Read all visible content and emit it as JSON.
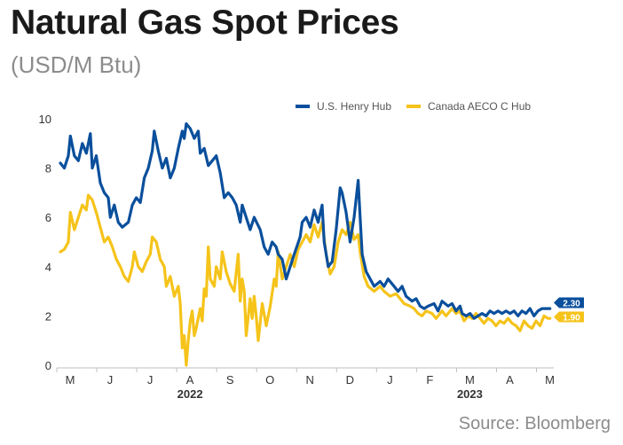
{
  "title": "Natural Gas Spot Prices",
  "subtitle": "(USD/M Btu)",
  "source": "Source: Bloomberg",
  "colors": {
    "henry": "#0a4f9c",
    "aeco": "#f5c31a",
    "axis": "#bfbfbf"
  },
  "chart_data": {
    "type": "line",
    "x_labels": [
      "M",
      "J",
      "J",
      "A",
      "S",
      "O",
      "N",
      "D",
      "J",
      "F",
      "M",
      "A",
      "M"
    ],
    "year_labels": [
      {
        "label": "2022",
        "month_index": 3
      },
      {
        "label": "2023",
        "month_index": 10
      }
    ],
    "ylim": [
      0,
      10
    ],
    "yticks": [
      0,
      2,
      4,
      6,
      8,
      10
    ],
    "x_range": [
      0,
      12.3
    ],
    "legend_position": "top-right",
    "series": [
      {
        "name": "U.S. Henry Hub",
        "color": "#0a4f9c",
        "end_label": "2.30",
        "points": [
          [
            0.0,
            8.2
          ],
          [
            0.1,
            8.0
          ],
          [
            0.2,
            8.5
          ],
          [
            0.25,
            9.3
          ],
          [
            0.35,
            8.5
          ],
          [
            0.45,
            8.3
          ],
          [
            0.55,
            9.0
          ],
          [
            0.65,
            8.6
          ],
          [
            0.75,
            9.4
          ],
          [
            0.8,
            8.0
          ],
          [
            0.9,
            8.5
          ],
          [
            1.0,
            7.4
          ],
          [
            1.1,
            7.0
          ],
          [
            1.2,
            6.8
          ],
          [
            1.25,
            6.0
          ],
          [
            1.35,
            6.5
          ],
          [
            1.45,
            5.8
          ],
          [
            1.55,
            5.6
          ],
          [
            1.7,
            5.8
          ],
          [
            1.8,
            6.5
          ],
          [
            1.9,
            6.8
          ],
          [
            2.0,
            6.6
          ],
          [
            2.1,
            7.6
          ],
          [
            2.2,
            8.0
          ],
          [
            2.3,
            8.7
          ],
          [
            2.35,
            9.5
          ],
          [
            2.45,
            8.7
          ],
          [
            2.55,
            8.0
          ],
          [
            2.65,
            8.4
          ],
          [
            2.75,
            7.6
          ],
          [
            2.85,
            8.0
          ],
          [
            2.95,
            8.8
          ],
          [
            3.05,
            9.5
          ],
          [
            3.1,
            9.2
          ],
          [
            3.15,
            9.8
          ],
          [
            3.25,
            9.6
          ],
          [
            3.35,
            9.2
          ],
          [
            3.45,
            9.5
          ],
          [
            3.5,
            8.6
          ],
          [
            3.6,
            8.8
          ],
          [
            3.7,
            8.1
          ],
          [
            3.8,
            8.3
          ],
          [
            3.9,
            8.5
          ],
          [
            4.0,
            7.8
          ],
          [
            4.1,
            6.8
          ],
          [
            4.2,
            7.0
          ],
          [
            4.3,
            6.8
          ],
          [
            4.4,
            6.5
          ],
          [
            4.5,
            5.8
          ],
          [
            4.55,
            6.5
          ],
          [
            4.65,
            6.0
          ],
          [
            4.75,
            5.5
          ],
          [
            4.85,
            6.0
          ],
          [
            5.0,
            5.5
          ],
          [
            5.1,
            4.8
          ],
          [
            5.2,
            4.5
          ],
          [
            5.3,
            5.0
          ],
          [
            5.4,
            4.8
          ],
          [
            5.45,
            4.5
          ],
          [
            5.55,
            4.3
          ],
          [
            5.65,
            3.5
          ],
          [
            5.75,
            4.0
          ],
          [
            5.85,
            4.5
          ],
          [
            6.0,
            5.2
          ],
          [
            6.05,
            5.8
          ],
          [
            6.15,
            6.0
          ],
          [
            6.25,
            5.6
          ],
          [
            6.35,
            6.3
          ],
          [
            6.45,
            5.8
          ],
          [
            6.55,
            6.5
          ],
          [
            6.6,
            5.0
          ],
          [
            6.7,
            4.0
          ],
          [
            6.8,
            4.2
          ],
          [
            6.9,
            5.5
          ],
          [
            7.0,
            7.2
          ],
          [
            7.05,
            7.0
          ],
          [
            7.15,
            6.2
          ],
          [
            7.25,
            5.0
          ],
          [
            7.35,
            6.0
          ],
          [
            7.45,
            7.5
          ],
          [
            7.5,
            6.0
          ],
          [
            7.55,
            4.5
          ],
          [
            7.65,
            3.8
          ],
          [
            7.75,
            3.5
          ],
          [
            7.85,
            3.2
          ],
          [
            8.0,
            3.4
          ],
          [
            8.1,
            3.2
          ],
          [
            8.2,
            3.5
          ],
          [
            8.3,
            3.3
          ],
          [
            8.45,
            3.0
          ],
          [
            8.55,
            3.2
          ],
          [
            8.65,
            2.8
          ],
          [
            8.8,
            2.6
          ],
          [
            8.9,
            2.7
          ],
          [
            9.0,
            2.4
          ],
          [
            9.1,
            2.3
          ],
          [
            9.2,
            2.4
          ],
          [
            9.35,
            2.5
          ],
          [
            9.45,
            2.2
          ],
          [
            9.55,
            2.6
          ],
          [
            9.7,
            2.4
          ],
          [
            9.8,
            2.5
          ],
          [
            9.9,
            2.2
          ],
          [
            10.0,
            2.4
          ],
          [
            10.05,
            2.1
          ],
          [
            10.15,
            2.0
          ],
          [
            10.25,
            2.1
          ],
          [
            10.35,
            1.9
          ],
          [
            10.45,
            2.0
          ],
          [
            10.55,
            2.1
          ],
          [
            10.65,
            2.0
          ],
          [
            10.75,
            2.2
          ],
          [
            10.85,
            2.1
          ],
          [
            10.95,
            2.2
          ],
          [
            11.05,
            2.1
          ],
          [
            11.15,
            2.2
          ],
          [
            11.25,
            2.1
          ],
          [
            11.35,
            2.2
          ],
          [
            11.45,
            2.0
          ],
          [
            11.55,
            2.2
          ],
          [
            11.65,
            2.1
          ],
          [
            11.75,
            2.3
          ],
          [
            11.85,
            2.0
          ],
          [
            11.95,
            2.2
          ],
          [
            12.05,
            2.3
          ],
          [
            12.15,
            2.3
          ],
          [
            12.25,
            2.3
          ]
        ]
      },
      {
        "name": "Canada AECO C Hub",
        "color": "#f5c31a",
        "end_label": "1.90",
        "points": [
          [
            0.0,
            4.6
          ],
          [
            0.1,
            4.7
          ],
          [
            0.2,
            5.0
          ],
          [
            0.25,
            6.2
          ],
          [
            0.35,
            5.5
          ],
          [
            0.45,
            6.0
          ],
          [
            0.55,
            6.5
          ],
          [
            0.65,
            6.3
          ],
          [
            0.7,
            6.9
          ],
          [
            0.8,
            6.7
          ],
          [
            0.9,
            6.2
          ],
          [
            1.0,
            5.6
          ],
          [
            1.1,
            5.0
          ],
          [
            1.2,
            5.2
          ],
          [
            1.3,
            4.8
          ],
          [
            1.4,
            4.3
          ],
          [
            1.5,
            4.0
          ],
          [
            1.6,
            3.6
          ],
          [
            1.7,
            3.4
          ],
          [
            1.8,
            4.0
          ],
          [
            1.85,
            4.6
          ],
          [
            1.95,
            4.0
          ],
          [
            2.05,
            3.8
          ],
          [
            2.15,
            4.2
          ],
          [
            2.25,
            4.5
          ],
          [
            2.3,
            5.2
          ],
          [
            2.4,
            5.0
          ],
          [
            2.5,
            4.3
          ],
          [
            2.6,
            4.0
          ],
          [
            2.65,
            3.2
          ],
          [
            2.75,
            3.6
          ],
          [
            2.85,
            2.8
          ],
          [
            2.95,
            3.2
          ],
          [
            3.0,
            2.5
          ],
          [
            3.05,
            0.7
          ],
          [
            3.1,
            1.2
          ],
          [
            3.15,
            0.0
          ],
          [
            3.2,
            1.0
          ],
          [
            3.25,
            1.8
          ],
          [
            3.3,
            2.2
          ],
          [
            3.35,
            1.2
          ],
          [
            3.4,
            1.5
          ],
          [
            3.5,
            2.3
          ],
          [
            3.55,
            1.8
          ],
          [
            3.6,
            3.1
          ],
          [
            3.65,
            2.8
          ],
          [
            3.7,
            4.8
          ],
          [
            3.75,
            3.5
          ],
          [
            3.85,
            3.2
          ],
          [
            3.9,
            4.0
          ],
          [
            4.0,
            3.5
          ],
          [
            4.05,
            4.6
          ],
          [
            4.15,
            3.8
          ],
          [
            4.25,
            3.3
          ],
          [
            4.35,
            3.0
          ],
          [
            4.45,
            4.5
          ],
          [
            4.5,
            2.6
          ],
          [
            4.55,
            3.5
          ],
          [
            4.6,
            3.0
          ],
          [
            4.65,
            1.2
          ],
          [
            4.75,
            2.7
          ],
          [
            4.8,
            1.9
          ],
          [
            4.85,
            2.8
          ],
          [
            4.9,
            2.0
          ],
          [
            4.95,
            1.0
          ],
          [
            5.05,
            2.5
          ],
          [
            5.15,
            1.6
          ],
          [
            5.25,
            2.4
          ],
          [
            5.35,
            3.5
          ],
          [
            5.4,
            3.2
          ],
          [
            5.45,
            4.6
          ],
          [
            5.55,
            3.5
          ],
          [
            5.65,
            4.0
          ],
          [
            5.75,
            4.5
          ],
          [
            5.85,
            4.0
          ],
          [
            5.95,
            4.7
          ],
          [
            6.05,
            5.0
          ],
          [
            6.15,
            5.3
          ],
          [
            6.25,
            5.0
          ],
          [
            6.35,
            5.7
          ],
          [
            6.45,
            5.2
          ],
          [
            6.55,
            5.8
          ],
          [
            6.65,
            4.5
          ],
          [
            6.75,
            3.7
          ],
          [
            6.85,
            4.0
          ],
          [
            6.95,
            5.0
          ],
          [
            7.05,
            5.5
          ],
          [
            7.15,
            5.3
          ],
          [
            7.25,
            5.8
          ],
          [
            7.35,
            5.1
          ],
          [
            7.45,
            5.3
          ],
          [
            7.5,
            4.6
          ],
          [
            7.6,
            3.6
          ],
          [
            7.7,
            3.2
          ],
          [
            7.85,
            3.0
          ],
          [
            8.0,
            3.2
          ],
          [
            8.1,
            3.0
          ],
          [
            8.25,
            2.8
          ],
          [
            8.4,
            2.9
          ],
          [
            8.5,
            2.7
          ],
          [
            8.6,
            2.5
          ],
          [
            8.75,
            2.4
          ],
          [
            8.85,
            2.3
          ],
          [
            8.95,
            2.1
          ],
          [
            9.05,
            2.0
          ],
          [
            9.15,
            2.2
          ],
          [
            9.3,
            2.1
          ],
          [
            9.4,
            1.9
          ],
          [
            9.55,
            2.2
          ],
          [
            9.65,
            2.0
          ],
          [
            9.8,
            2.3
          ],
          [
            9.9,
            2.1
          ],
          [
            10.0,
            2.2
          ],
          [
            10.1,
            1.8
          ],
          [
            10.2,
            2.0
          ],
          [
            10.3,
            1.9
          ],
          [
            10.4,
            2.1
          ],
          [
            10.5,
            1.9
          ],
          [
            10.6,
            1.7
          ],
          [
            10.7,
            1.9
          ],
          [
            10.8,
            1.8
          ],
          [
            10.9,
            1.6
          ],
          [
            11.0,
            1.8
          ],
          [
            11.1,
            1.7
          ],
          [
            11.2,
            1.9
          ],
          [
            11.3,
            1.7
          ],
          [
            11.4,
            1.6
          ],
          [
            11.5,
            1.4
          ],
          [
            11.6,
            1.8
          ],
          [
            11.7,
            1.6
          ],
          [
            11.8,
            1.5
          ],
          [
            11.9,
            1.8
          ],
          [
            12.0,
            1.6
          ],
          [
            12.1,
            2.0
          ],
          [
            12.2,
            1.9
          ],
          [
            12.25,
            1.9
          ]
        ]
      }
    ]
  }
}
